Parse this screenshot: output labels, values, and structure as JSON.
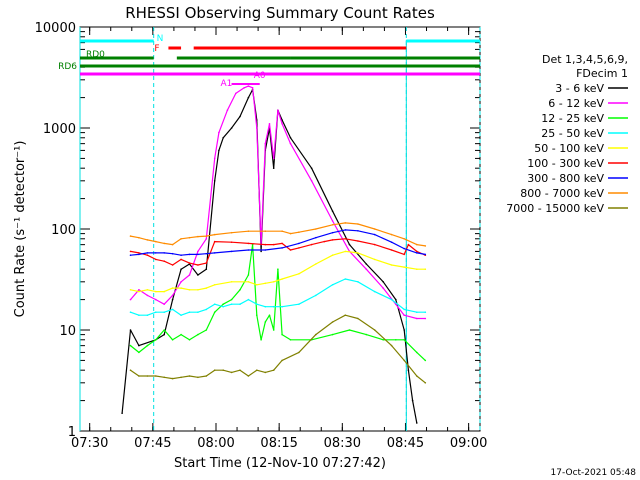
{
  "chart_data": {
    "type": "line",
    "title": "RHESSI Observing Summary Count Rates",
    "xlabel": "Start Time (12-Nov-10 07:27:42)",
    "ylabel": "Count Rate (s⁻¹ detector⁻¹)",
    "yscale": "log",
    "ylim": [
      1,
      10000
    ],
    "xlim_minutes": [
      0,
      95
    ],
    "x_ticks": [
      {
        "t": 2.3,
        "label": "07:30"
      },
      {
        "t": 17.3,
        "label": "07:45"
      },
      {
        "t": 32.3,
        "label": "08:00"
      },
      {
        "t": 47.3,
        "label": "08:15"
      },
      {
        "t": 62.3,
        "label": "08:30"
      },
      {
        "t": 77.3,
        "label": "08:45"
      },
      {
        "t": 92.3,
        "label": "09:00"
      }
    ],
    "y_ticks": [
      {
        "v": 1,
        "label": "1"
      },
      {
        "v": 10,
        "label": "10"
      },
      {
        "v": 100,
        "label": "100"
      },
      {
        "v": 1000,
        "label": "1000"
      },
      {
        "v": 10000,
        "label": "10000"
      }
    ],
    "legend": {
      "header_line1": "Det 1,3,4,5,6,9,",
      "header_line2": "FDecim 1",
      "placement": "right"
    },
    "series": [
      {
        "name": "3 - 6 keV",
        "color": "#000000",
        "points": [
          [
            0,
            null
          ],
          [
            10,
            1.5
          ],
          [
            12,
            10
          ],
          [
            14,
            7
          ],
          [
            18,
            8
          ],
          [
            20,
            9
          ],
          [
            22,
            20
          ],
          [
            24,
            40
          ],
          [
            26,
            45
          ],
          [
            28,
            35
          ],
          [
            30,
            40
          ],
          [
            32,
            300
          ],
          [
            33,
            600
          ],
          [
            34,
            800
          ],
          [
            36,
            1000
          ],
          [
            38,
            1300
          ],
          [
            40,
            2000
          ],
          [
            41,
            2400
          ],
          [
            42,
            1200
          ],
          [
            43,
            60
          ],
          [
            44,
            600
          ],
          [
            45,
            1000
          ],
          [
            46,
            400
          ],
          [
            47,
            1500
          ],
          [
            48,
            1200
          ],
          [
            50,
            800
          ],
          [
            55,
            400
          ],
          [
            60,
            150
          ],
          [
            64,
            70
          ],
          [
            68,
            45
          ],
          [
            72,
            30
          ],
          [
            75,
            20
          ],
          [
            77,
            10
          ],
          [
            78,
            4
          ],
          [
            79,
            2
          ],
          [
            80,
            1.2
          ]
        ]
      },
      {
        "name": "6 - 12 keV",
        "color": "#ff00ff",
        "points": [
          [
            10,
            null
          ],
          [
            12,
            20
          ],
          [
            14,
            25
          ],
          [
            16,
            22
          ],
          [
            18,
            20
          ],
          [
            20,
            18
          ],
          [
            22,
            22
          ],
          [
            24,
            30
          ],
          [
            26,
            35
          ],
          [
            28,
            60
          ],
          [
            30,
            80
          ],
          [
            32,
            500
          ],
          [
            33,
            900
          ],
          [
            35,
            1500
          ],
          [
            37,
            2200
          ],
          [
            39,
            2500
          ],
          [
            40,
            2600
          ],
          [
            41,
            2500
          ],
          [
            42,
            1000
          ],
          [
            43,
            70
          ],
          [
            44,
            700
          ],
          [
            45,
            1100
          ],
          [
            46,
            500
          ],
          [
            47,
            1500
          ],
          [
            48,
            1100
          ],
          [
            50,
            700
          ],
          [
            55,
            300
          ],
          [
            60,
            120
          ],
          [
            64,
            60
          ],
          [
            68,
            40
          ],
          [
            72,
            26
          ],
          [
            75,
            18
          ],
          [
            77,
            14
          ],
          [
            80,
            13
          ],
          [
            82,
            13
          ]
        ]
      },
      {
        "name": "12 - 25 keV",
        "color": "#00ff00",
        "points": [
          [
            10,
            null
          ],
          [
            12,
            7
          ],
          [
            14,
            6
          ],
          [
            16,
            7
          ],
          [
            18,
            8
          ],
          [
            20,
            10
          ],
          [
            22,
            8
          ],
          [
            24,
            9
          ],
          [
            26,
            8
          ],
          [
            28,
            9
          ],
          [
            30,
            10
          ],
          [
            32,
            15
          ],
          [
            34,
            18
          ],
          [
            36,
            20
          ],
          [
            38,
            25
          ],
          [
            40,
            35
          ],
          [
            41,
            70
          ],
          [
            42,
            14
          ],
          [
            43,
            8
          ],
          [
            44,
            12
          ],
          [
            45,
            14
          ],
          [
            46,
            10
          ],
          [
            47,
            40
          ],
          [
            48,
            9
          ],
          [
            50,
            8
          ],
          [
            55,
            8
          ],
          [
            60,
            9
          ],
          [
            64,
            10
          ],
          [
            68,
            9
          ],
          [
            72,
            8
          ],
          [
            75,
            8
          ],
          [
            77,
            8
          ],
          [
            80,
            6
          ],
          [
            82,
            5
          ]
        ]
      },
      {
        "name": "25 - 50 keV",
        "color": "#00ffff",
        "points": [
          [
            10,
            null
          ],
          [
            12,
            15
          ],
          [
            14,
            14
          ],
          [
            16,
            14
          ],
          [
            18,
            15
          ],
          [
            20,
            15
          ],
          [
            22,
            16
          ],
          [
            24,
            14
          ],
          [
            26,
            15
          ],
          [
            28,
            15
          ],
          [
            30,
            16
          ],
          [
            32,
            18
          ],
          [
            34,
            17
          ],
          [
            36,
            18
          ],
          [
            38,
            18
          ],
          [
            40,
            20
          ],
          [
            42,
            18
          ],
          [
            44,
            17
          ],
          [
            46,
            17
          ],
          [
            48,
            17
          ],
          [
            52,
            18
          ],
          [
            56,
            22
          ],
          [
            60,
            28
          ],
          [
            63,
            32
          ],
          [
            66,
            30
          ],
          [
            70,
            24
          ],
          [
            74,
            20
          ],
          [
            77,
            16
          ],
          [
            80,
            15
          ],
          [
            82,
            15
          ]
        ]
      },
      {
        "name": "50 - 100 keV",
        "color": "#ffff00",
        "points": [
          [
            10,
            null
          ],
          [
            12,
            25
          ],
          [
            14,
            24
          ],
          [
            16,
            25
          ],
          [
            18,
            24
          ],
          [
            20,
            24
          ],
          [
            22,
            26
          ],
          [
            24,
            26
          ],
          [
            26,
            25
          ],
          [
            28,
            25
          ],
          [
            30,
            26
          ],
          [
            32,
            28
          ],
          [
            36,
            30
          ],
          [
            40,
            30
          ],
          [
            42,
            28
          ],
          [
            44,
            29
          ],
          [
            46,
            30
          ],
          [
            48,
            32
          ],
          [
            52,
            36
          ],
          [
            56,
            45
          ],
          [
            60,
            55
          ],
          [
            63,
            60
          ],
          [
            66,
            58
          ],
          [
            70,
            50
          ],
          [
            74,
            44
          ],
          [
            77,
            42
          ],
          [
            80,
            40
          ],
          [
            82,
            40
          ]
        ]
      },
      {
        "name": "100 - 300 keV",
        "color": "#ff0000",
        "points": [
          [
            10,
            null
          ],
          [
            12,
            60
          ],
          [
            14,
            58
          ],
          [
            16,
            55
          ],
          [
            18,
            50
          ],
          [
            20,
            48
          ],
          [
            22,
            44
          ],
          [
            24,
            50
          ],
          [
            26,
            46
          ],
          [
            28,
            44
          ],
          [
            30,
            46
          ],
          [
            32,
            75
          ],
          [
            36,
            74
          ],
          [
            40,
            72
          ],
          [
            44,
            70
          ],
          [
            46,
            70
          ],
          [
            48,
            72
          ],
          [
            50,
            62
          ],
          [
            52,
            65
          ],
          [
            55,
            70
          ],
          [
            58,
            75
          ],
          [
            60,
            78
          ],
          [
            63,
            80
          ],
          [
            66,
            76
          ],
          [
            70,
            70
          ],
          [
            74,
            62
          ],
          [
            77,
            56
          ],
          [
            78,
            70
          ],
          [
            80,
            60
          ],
          [
            82,
            55
          ]
        ]
      },
      {
        "name": "300 - 800 keV",
        "color": "#0000ff",
        "points": [
          [
            10,
            null
          ],
          [
            12,
            55
          ],
          [
            14,
            56
          ],
          [
            16,
            58
          ],
          [
            18,
            58
          ],
          [
            20,
            58
          ],
          [
            22,
            57
          ],
          [
            24,
            55
          ],
          [
            26,
            56
          ],
          [
            28,
            56
          ],
          [
            30,
            57
          ],
          [
            32,
            58
          ],
          [
            36,
            60
          ],
          [
            40,
            62
          ],
          [
            44,
            62
          ],
          [
            48,
            65
          ],
          [
            52,
            72
          ],
          [
            56,
            82
          ],
          [
            60,
            92
          ],
          [
            63,
            98
          ],
          [
            66,
            96
          ],
          [
            70,
            88
          ],
          [
            74,
            74
          ],
          [
            77,
            64
          ],
          [
            80,
            58
          ],
          [
            82,
            56
          ]
        ]
      },
      {
        "name": "800 - 7000 keV",
        "color": "#ff8c00",
        "points": [
          [
            10,
            null
          ],
          [
            12,
            85
          ],
          [
            14,
            82
          ],
          [
            16,
            78
          ],
          [
            18,
            75
          ],
          [
            20,
            72
          ],
          [
            22,
            70
          ],
          [
            24,
            80
          ],
          [
            26,
            82
          ],
          [
            28,
            84
          ],
          [
            30,
            85
          ],
          [
            32,
            88
          ],
          [
            36,
            92
          ],
          [
            40,
            95
          ],
          [
            44,
            95
          ],
          [
            48,
            95
          ],
          [
            50,
            90
          ],
          [
            52,
            93
          ],
          [
            56,
            100
          ],
          [
            60,
            110
          ],
          [
            63,
            115
          ],
          [
            66,
            112
          ],
          [
            70,
            100
          ],
          [
            74,
            88
          ],
          [
            77,
            80
          ],
          [
            80,
            70
          ],
          [
            82,
            68
          ]
        ]
      },
      {
        "name": "7000 - 15000 keV",
        "color": "#808000",
        "points": [
          [
            10,
            null
          ],
          [
            12,
            4
          ],
          [
            14,
            3.5
          ],
          [
            16,
            3.5
          ],
          [
            18,
            3.5
          ],
          [
            20,
            3.4
          ],
          [
            22,
            3.3
          ],
          [
            24,
            3.4
          ],
          [
            26,
            3.5
          ],
          [
            28,
            3.4
          ],
          [
            30,
            3.5
          ],
          [
            32,
            4
          ],
          [
            34,
            4
          ],
          [
            36,
            3.8
          ],
          [
            38,
            4
          ],
          [
            40,
            3.5
          ],
          [
            42,
            4
          ],
          [
            44,
            3.8
          ],
          [
            46,
            4
          ],
          [
            48,
            5
          ],
          [
            52,
            6
          ],
          [
            56,
            9
          ],
          [
            60,
            12
          ],
          [
            63,
            14
          ],
          [
            66,
            13
          ],
          [
            70,
            10
          ],
          [
            74,
            7
          ],
          [
            77,
            5
          ],
          [
            80,
            3.5
          ],
          [
            82,
            3
          ]
        ]
      }
    ],
    "status_bars": {
      "N": {
        "label": "N",
        "color": "#00ffff",
        "segments": [
          [
            0,
            17.5
          ],
          [
            77.5,
            95
          ]
        ]
      },
      "F": {
        "label": "F",
        "color": "#ff0000",
        "segments": [
          [
            21,
            24
          ],
          [
            27,
            77.5
          ]
        ]
      },
      "RD0": {
        "label": "RD0",
        "color": "#008000",
        "segments": [
          [
            0,
            17.5
          ],
          [
            23,
            50
          ],
          [
            50,
            77.5
          ],
          [
            77.5,
            95
          ]
        ]
      },
      "RD6": {
        "label": "RD6",
        "color": "#008000"
      },
      "magenta_bar": {
        "color": "#ff00ff",
        "segments": [
          [
            0,
            95
          ]
        ]
      }
    },
    "markers": {
      "A1": {
        "label": "A1",
        "t": 36.7
      },
      "A0": {
        "label": "A0",
        "t": 41.5
      }
    },
    "vertical_lines": [
      17.5,
      77.5,
      95
    ]
  },
  "footer": {
    "timestamp": "17-Oct-2021 05:48"
  }
}
